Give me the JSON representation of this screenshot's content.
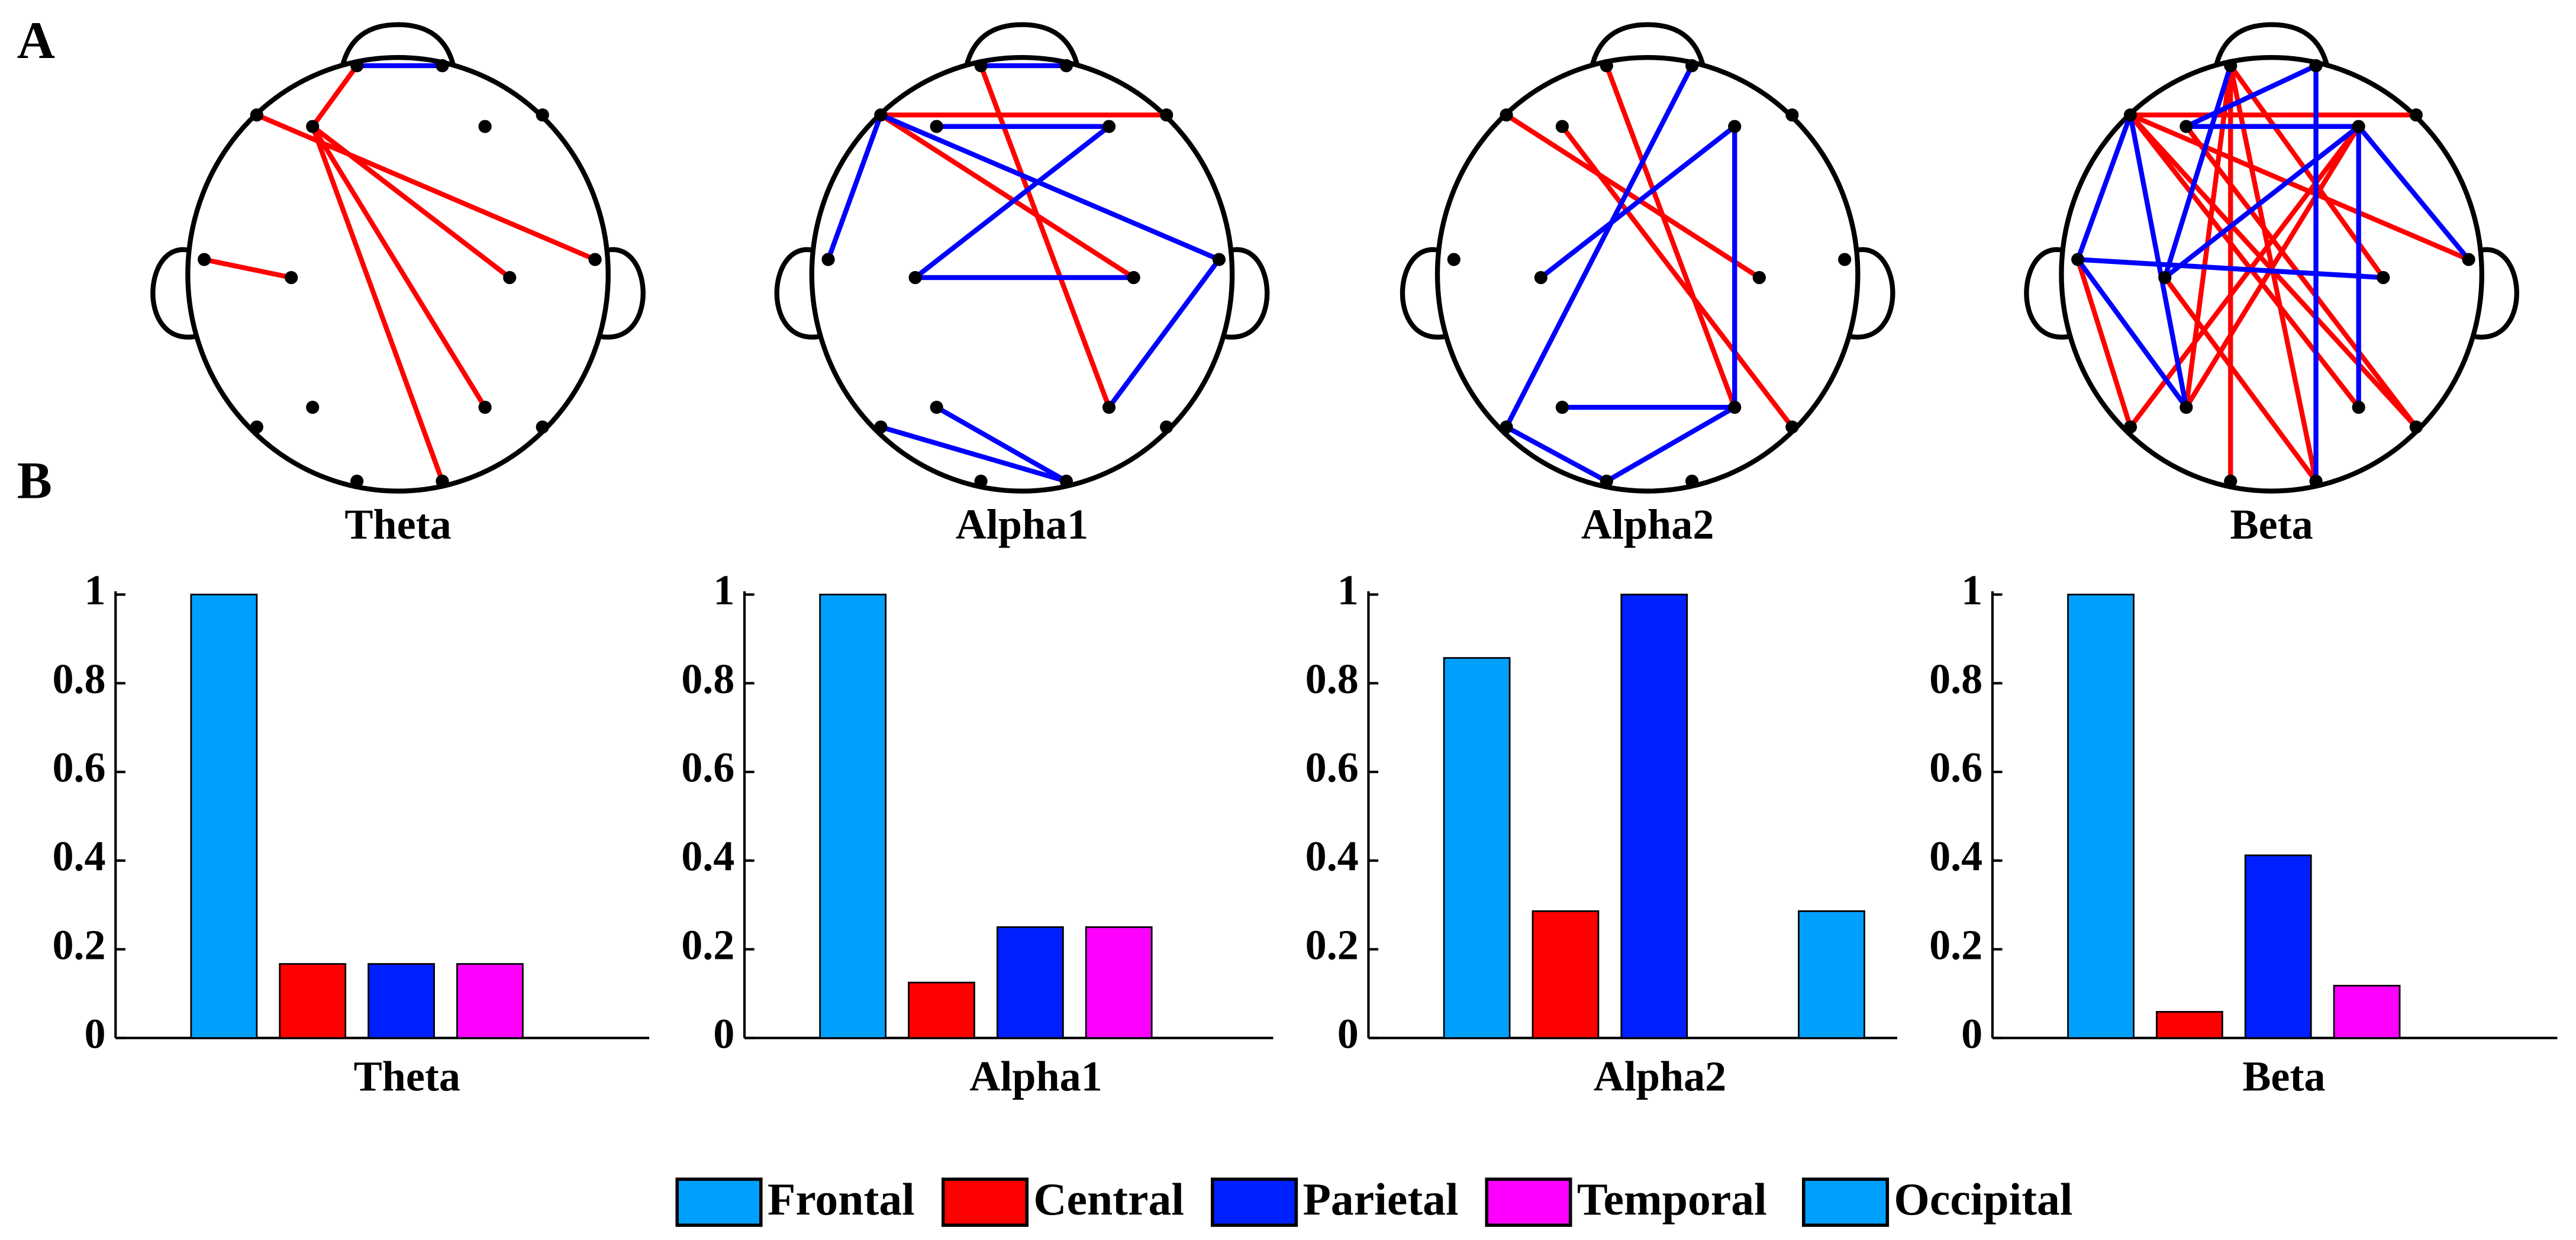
{
  "panel_labels": [
    "A",
    "B"
  ],
  "head_maps": [
    {
      "label": "Theta"
    },
    {
      "label": "Alpha1"
    },
    {
      "label": "Alpha2"
    },
    {
      "label": "Beta"
    }
  ],
  "legend": {
    "items": [
      {
        "name": "Frontal",
        "color": "#00a0ff"
      },
      {
        "name": "Central",
        "color": "#ff0000"
      },
      {
        "name": "Parietal",
        "color": "#0020ff"
      },
      {
        "name": "Temporal",
        "color": "#ff00ff"
      },
      {
        "name": "Occipital",
        "color": "#00a0ff"
      }
    ]
  },
  "chart_data": [
    {
      "type": "bar",
      "xlabel": "Theta",
      "values": [
        1,
        0.167,
        0.167,
        0.167,
        0
      ],
      "ylim": [
        0,
        1
      ],
      "yticks": [
        0,
        0.2,
        0.4,
        0.6,
        0.8,
        1
      ]
    },
    {
      "type": "bar",
      "xlabel": "Alpha1",
      "values": [
        1,
        0.125,
        0.25,
        0.25,
        0
      ],
      "ylim": [
        0,
        1
      ],
      "yticks": [
        0,
        0.2,
        0.4,
        0.6,
        0.8,
        1
      ]
    },
    {
      "type": "bar",
      "xlabel": "Alpha2",
      "values": [
        0.857,
        0.286,
        1,
        0,
        0.286
      ],
      "ylim": [
        0,
        1
      ],
      "yticks": [
        0,
        0.2,
        0.4,
        0.6,
        0.8,
        1
      ]
    },
    {
      "type": "bar",
      "xlabel": "Beta",
      "values": [
        1,
        0.059,
        0.412,
        0.118,
        0
      ],
      "ylim": [
        0,
        1
      ],
      "yticks": [
        0,
        0.2,
        0.4,
        0.6,
        0.8,
        1
      ]
    }
  ]
}
